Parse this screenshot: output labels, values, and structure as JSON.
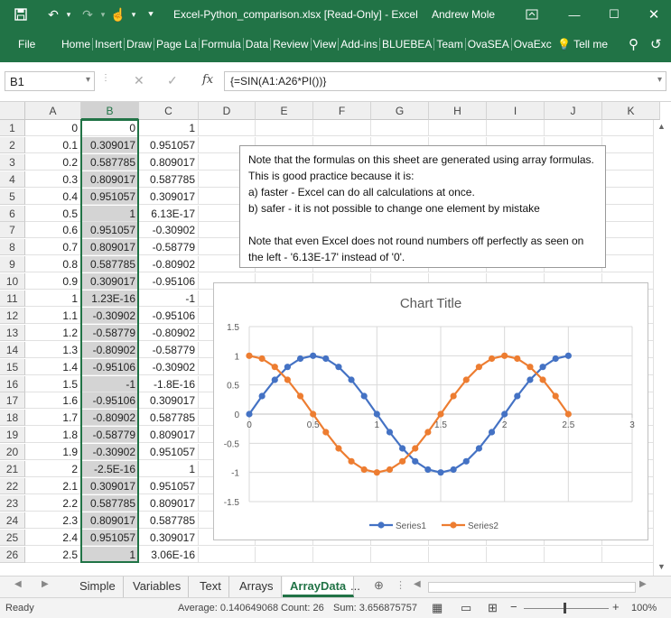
{
  "window": {
    "title": "Excel-Python_comparison.xlsx  [Read-Only]  -  Excel",
    "user": "Andrew Mole"
  },
  "ribbon": {
    "file": "File",
    "tabs": [
      "Home",
      "Insert",
      "Draw",
      "Page La",
      "Formula",
      "Data",
      "Review",
      "View",
      "Add-ins",
      "BLUEBEA",
      "Team",
      "OvaSEA",
      "OvaExc"
    ],
    "tell_me": "Tell me"
  },
  "formula_bar": {
    "name_box": "B1",
    "formula": "{=SIN(A1:A26*PI())}",
    "fx": "fx"
  },
  "columns": [
    "A",
    "B",
    "C",
    "D",
    "E",
    "F",
    "G",
    "H",
    "I",
    "J",
    "K"
  ],
  "rows": [
    {
      "n": "1",
      "a": "0",
      "b": "0",
      "c": "1"
    },
    {
      "n": "2",
      "a": "0.1",
      "b": "0.309017",
      "c": "0.951057"
    },
    {
      "n": "3",
      "a": "0.2",
      "b": "0.587785",
      "c": "0.809017"
    },
    {
      "n": "4",
      "a": "0.3",
      "b": "0.809017",
      "c": "0.587785"
    },
    {
      "n": "5",
      "a": "0.4",
      "b": "0.951057",
      "c": "0.309017"
    },
    {
      "n": "6",
      "a": "0.5",
      "b": "1",
      "c": "6.13E-17"
    },
    {
      "n": "7",
      "a": "0.6",
      "b": "0.951057",
      "c": "-0.30902"
    },
    {
      "n": "8",
      "a": "0.7",
      "b": "0.809017",
      "c": "-0.58779"
    },
    {
      "n": "9",
      "a": "0.8",
      "b": "0.587785",
      "c": "-0.80902"
    },
    {
      "n": "10",
      "a": "0.9",
      "b": "0.309017",
      "c": "-0.95106"
    },
    {
      "n": "11",
      "a": "1",
      "b": "1.23E-16",
      "c": "-1"
    },
    {
      "n": "12",
      "a": "1.1",
      "b": "-0.30902",
      "c": "-0.95106"
    },
    {
      "n": "13",
      "a": "1.2",
      "b": "-0.58779",
      "c": "-0.80902"
    },
    {
      "n": "14",
      "a": "1.3",
      "b": "-0.80902",
      "c": "-0.58779"
    },
    {
      "n": "15",
      "a": "1.4",
      "b": "-0.95106",
      "c": "-0.30902"
    },
    {
      "n": "16",
      "a": "1.5",
      "b": "-1",
      "c": "-1.8E-16"
    },
    {
      "n": "17",
      "a": "1.6",
      "b": "-0.95106",
      "c": "0.309017"
    },
    {
      "n": "18",
      "a": "1.7",
      "b": "-0.80902",
      "c": "0.587785"
    },
    {
      "n": "19",
      "a": "1.8",
      "b": "-0.58779",
      "c": "0.809017"
    },
    {
      "n": "20",
      "a": "1.9",
      "b": "-0.30902",
      "c": "0.951057"
    },
    {
      "n": "21",
      "a": "2",
      "b": "-2.5E-16",
      "c": "1"
    },
    {
      "n": "22",
      "a": "2.1",
      "b": "0.309017",
      "c": "0.951057"
    },
    {
      "n": "23",
      "a": "2.2",
      "b": "0.587785",
      "c": "0.809017"
    },
    {
      "n": "24",
      "a": "2.3",
      "b": "0.809017",
      "c": "0.587785"
    },
    {
      "n": "25",
      "a": "2.4",
      "b": "0.951057",
      "c": "0.309017"
    },
    {
      "n": "26",
      "a": "2.5",
      "b": "1",
      "c": "3.06E-16"
    }
  ],
  "note": {
    "line1": "Note that the formulas on this sheet are generated using array formulas. This is good practice because it is:",
    "line2": "a) faster - Excel can do all calculations at once.",
    "line3": "b) safer - it is not possible to change one element by mistake",
    "line4": "Note that even Excel does not round numbers off perfectly as seen on the left - '6.13E-17' instead of '0'."
  },
  "chart_data": {
    "type": "scatter",
    "title": "Chart Title",
    "xlim": [
      0,
      3
    ],
    "ylim": [
      -1.5,
      1.5
    ],
    "x_ticks": [
      "0",
      "0.5",
      "1",
      "1.5",
      "2",
      "2.5",
      "3"
    ],
    "y_ticks": [
      "1.5",
      "1",
      "0.5",
      "0",
      "-0.5",
      "-1",
      "-1.5"
    ],
    "grid": true,
    "legend": "bottom",
    "x": [
      0,
      0.1,
      0.2,
      0.3,
      0.4,
      0.5,
      0.6,
      0.7,
      0.8,
      0.9,
      1,
      1.1,
      1.2,
      1.3,
      1.4,
      1.5,
      1.6,
      1.7,
      1.8,
      1.9,
      2,
      2.1,
      2.2,
      2.3,
      2.4,
      2.5
    ],
    "series": [
      {
        "name": "Series1",
        "color": "#4472C4",
        "values": [
          0,
          0.309017,
          0.587785,
          0.809017,
          0.951057,
          1,
          0.951057,
          0.809017,
          0.587785,
          0.309017,
          0,
          -0.30902,
          -0.58779,
          -0.80902,
          -0.95106,
          -1,
          -0.95106,
          -0.80902,
          -0.58779,
          -0.30902,
          0,
          0.309017,
          0.587785,
          0.809017,
          0.951057,
          1
        ]
      },
      {
        "name": "Series2",
        "color": "#ED7D31",
        "values": [
          1,
          0.951057,
          0.809017,
          0.587785,
          0.309017,
          0,
          -0.30902,
          -0.58779,
          -0.80902,
          -0.95106,
          -1,
          -0.95106,
          -0.80902,
          -0.58779,
          -0.30902,
          0,
          0.309017,
          0.587785,
          0.809017,
          0.951057,
          1,
          0.951057,
          0.809017,
          0.587785,
          0.309017,
          0
        ]
      }
    ]
  },
  "sheet_tabs": [
    "Simple",
    "Variables",
    "Text",
    "Arrays",
    "ArrayData",
    "..."
  ],
  "status": {
    "ready": "Ready",
    "average": "Average: 0.140649068",
    "count": "Count: 26",
    "sum": "Sum: 3.656875757",
    "zoom": "100%"
  },
  "colors": {
    "excel_green": "#217346",
    "selection_gray": "#d4d4d4"
  }
}
